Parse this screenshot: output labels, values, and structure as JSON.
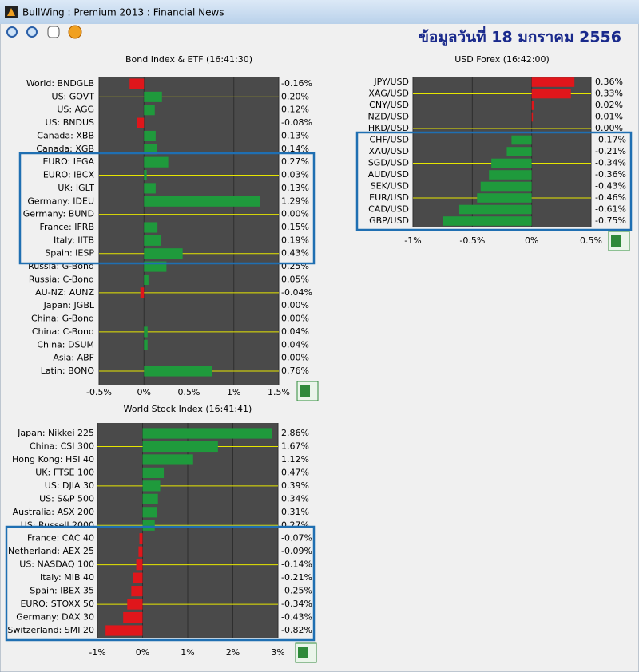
{
  "window": {
    "title": "BullWing : Premium 2013 : Financial News"
  },
  "header": {
    "date": "ข้อมูลวันที่ 18 มกราคม 2556"
  },
  "chart_data": [
    {
      "type": "bar",
      "orientation": "horizontal",
      "title": "Bond Index & ETF (16:41:30)",
      "categories": [
        "World: BNDGLB",
        "US: GOVT",
        "US: AGG",
        "US: BNDUS",
        "Canada: XBB",
        "Canada: XGB",
        "EURO: IEGA",
        "EURO: IBCX",
        "UK: IGLT",
        "Germany: IDEU",
        "Germany: BUND",
        "France: IFRB",
        "Italy: IITB",
        "Spain: IESP",
        "Russia: G-Bond",
        "Russia: C-Bond",
        "AU-NZ: AUNZ",
        "Japan: JGBL",
        "China: G-Bond",
        "China: C-Bond",
        "China: DSUM",
        "Asia: ABF",
        "Latin: BONO"
      ],
      "values": [
        -0.16,
        0.2,
        0.12,
        -0.08,
        0.13,
        0.14,
        0.27,
        0.03,
        0.13,
        1.29,
        0.0,
        0.15,
        0.19,
        0.43,
        0.25,
        0.05,
        -0.04,
        0.0,
        0.0,
        0.04,
        0.04,
        0.0,
        0.76
      ],
      "value_labels": [
        "-0.16%",
        "0.20%",
        "0.12%",
        "-0.08%",
        "0.13%",
        "0.14%",
        "0.27%",
        "0.03%",
        "0.13%",
        "1.29%",
        "0.00%",
        "0.15%",
        "0.19%",
        "0.43%",
        "0.25%",
        "0.05%",
        "-0.04%",
        "0.00%",
        "0.00%",
        "0.04%",
        "0.04%",
        "0.00%",
        "0.76%"
      ],
      "xlim": [
        -0.5,
        1.5
      ],
      "xticks": [
        {
          "value": -0.5,
          "label": "-0.5%"
        },
        {
          "value": 0,
          "label": "0%"
        },
        {
          "value": 0.5,
          "label": "0.5%"
        },
        {
          "value": 1,
          "label": "1%"
        },
        {
          "value": 1.5,
          "label": "1.5%"
        }
      ],
      "up_color": "#1f9a3c",
      "down_color": "#e0161b"
    },
    {
      "type": "bar",
      "orientation": "horizontal",
      "title": "USD Forex (16:42:00)",
      "categories": [
        "JPY/USD",
        "XAG/USD",
        "CNY/USD",
        "NZD/USD",
        "HKD/USD",
        "CHF/USD",
        "XAU/USD",
        "SGD/USD",
        "AUD/USD",
        "SEK/USD",
        "EUR/USD",
        "CAD/USD",
        "GBP/USD"
      ],
      "values": [
        0.36,
        0.33,
        0.02,
        0.01,
        0.0,
        -0.17,
        -0.21,
        -0.34,
        -0.36,
        -0.43,
        -0.46,
        -0.61,
        -0.75
      ],
      "value_labels": [
        "0.36%",
        "0.33%",
        "0.02%",
        "0.01%",
        "0.00%",
        "-0.17%",
        "-0.21%",
        "-0.34%",
        "-0.36%",
        "-0.43%",
        "-0.46%",
        "-0.61%",
        "-0.75%"
      ],
      "xlim": [
        -1,
        0.5
      ],
      "xticks": [
        {
          "value": -1,
          "label": "-1%"
        },
        {
          "value": -0.5,
          "label": "-0.5%"
        },
        {
          "value": 0,
          "label": "0%"
        },
        {
          "value": 0.5,
          "label": "0.5%"
        }
      ],
      "up_color": "#e0161b",
      "down_color": "#1f9a3c"
    },
    {
      "type": "bar",
      "orientation": "horizontal",
      "title": "World Stock Index (16:41:41)",
      "categories": [
        "Japan: Nikkei 225",
        "China: CSI 300",
        "Hong Kong: HSI 40",
        "UK: FTSE 100",
        "US: DJIA 30",
        "US: S&P 500",
        "Australia: ASX 200",
        "US: Russell 2000",
        "France: CAC 40",
        "Netherland: AEX 25",
        "US: NASDAQ 100",
        "Italy: MIB 40",
        "Spain: IBEX 35",
        "EURO: STOXX 50",
        "Germany: DAX 30",
        "Switzerland: SMI 20"
      ],
      "values": [
        2.86,
        1.67,
        1.12,
        0.47,
        0.39,
        0.34,
        0.31,
        0.27,
        -0.07,
        -0.09,
        -0.14,
        -0.21,
        -0.25,
        -0.34,
        -0.43,
        -0.82
      ],
      "value_labels": [
        "2.86%",
        "1.67%",
        "1.12%",
        "0.47%",
        "0.39%",
        "0.34%",
        "0.31%",
        "0.27%",
        "-0.07%",
        "-0.09%",
        "-0.14%",
        "-0.21%",
        "-0.25%",
        "-0.34%",
        "-0.43%",
        "-0.82%"
      ],
      "xlim": [
        -1,
        3
      ],
      "xticks": [
        {
          "value": -1,
          "label": "-1%"
        },
        {
          "value": 0,
          "label": "0%"
        },
        {
          "value": 1,
          "label": "1%"
        },
        {
          "value": 2,
          "label": "2%"
        },
        {
          "value": 3,
          "label": "3%"
        }
      ],
      "up_color": "#1f9a3c",
      "down_color": "#e0161b"
    }
  ]
}
